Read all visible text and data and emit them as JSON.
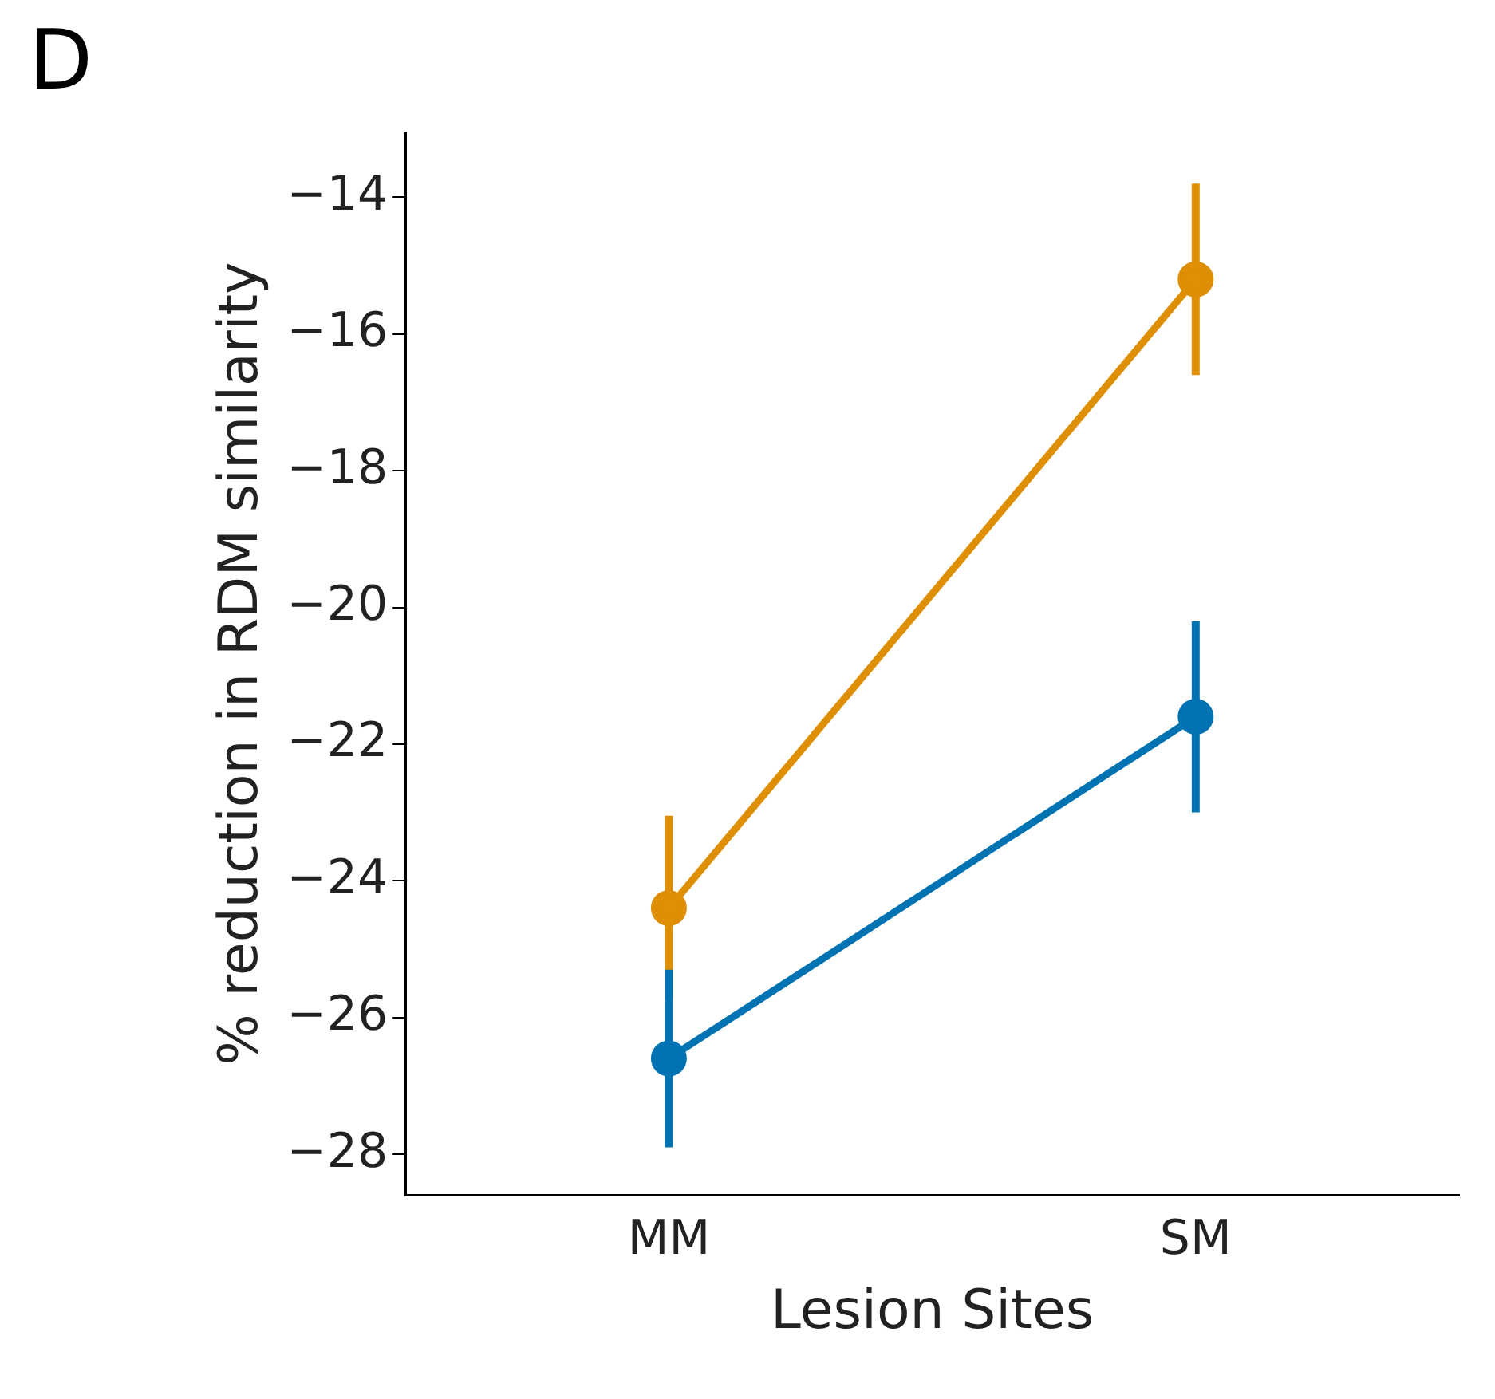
{
  "chart_data": {
    "type": "line",
    "xlabel": "Lesion Sites",
    "ylabel": "% reduction in RDM similarity",
    "annotations": [
      "D"
    ],
    "categories": [
      "MM",
      "SM"
    ],
    "series": [
      {
        "color": "#de8f05",
        "values": [
          -24.4,
          -15.2
        ],
        "errors": [
          1.35,
          1.4
        ]
      },
      {
        "color": "#0173b2",
        "values": [
          -26.6,
          -21.6
        ],
        "errors": [
          1.3,
          1.4
        ]
      }
    ],
    "ylim": [
      -28.6,
      -13.05
    ],
    "yticks": [
      -28,
      -26,
      -24,
      -22,
      -20,
      -18,
      -16,
      -14
    ],
    "grid": false,
    "legend": false,
    "marker": "circle",
    "line_style": "solid"
  }
}
